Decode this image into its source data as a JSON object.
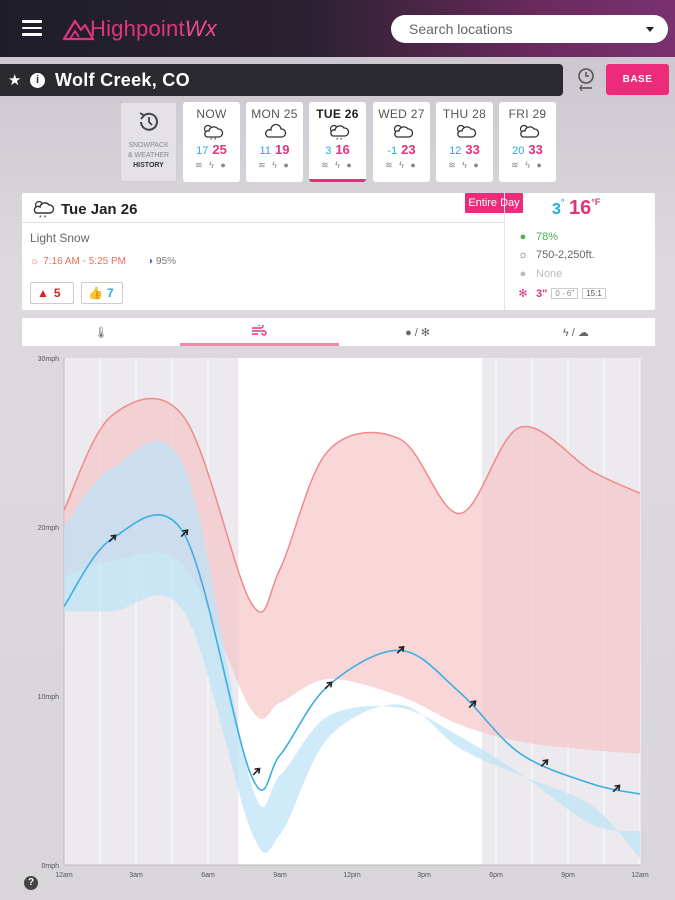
{
  "header": {
    "logo_text": "Highpoint",
    "logo_suffix": "Wx",
    "search_placeholder": "Search locations"
  },
  "location": {
    "name": "Wolf Creek, CO",
    "base_label": "BASE"
  },
  "history": {
    "line1": "SNOWPACK",
    "line2": "& WEATHER",
    "line3": "HISTORY"
  },
  "days": [
    {
      "name": "NOW",
      "lo": "17",
      "hi": "25",
      "icon": "cloud-sun-snow-icon"
    },
    {
      "name": "MON 25",
      "lo": "11",
      "hi": "19",
      "icon": "cloud-icon"
    },
    {
      "name": "TUE 26",
      "lo": "3",
      "hi": "16",
      "icon": "cloud-snow-icon"
    },
    {
      "name": "WED 27",
      "lo": "-1",
      "hi": "23",
      "icon": "cloud-sun-icon"
    },
    {
      "name": "THU 28",
      "lo": "12",
      "hi": "33",
      "icon": "cloud-sun-icon"
    },
    {
      "name": "FRI 29",
      "lo": "20",
      "hi": "33",
      "icon": "cloud-sun-icon"
    }
  ],
  "detail": {
    "date": "Tue Jan 26",
    "entire_day": "Entire Day",
    "condition": "Light Snow",
    "sun_times": "7:16 AM - 5:25 PM",
    "moon": "95%",
    "alerts": "5",
    "likes": "7",
    "temp_lo": "3",
    "temp_hi": "16",
    "temp_unit": "F",
    "precip_chance": "78%",
    "cloud_elev": "750-2,250ft.",
    "precip_type": "None",
    "snow_amount": "3\"",
    "snow_range": "0 - 6\"",
    "snow_ratio": "15:1"
  },
  "tabs": [
    "temperature",
    "wind",
    "precip-snow",
    "lightning-cloud"
  ],
  "chart_data": {
    "type": "area",
    "ylabel_ticks": [
      "0mph",
      "10mph",
      "20mph",
      "30mph"
    ],
    "ylim": [
      0,
      30
    ],
    "xlim": [
      0,
      24
    ],
    "x_tick_labels": [
      "12am",
      "3am",
      "6am",
      "9am",
      "12pm",
      "3pm",
      "6pm",
      "9pm",
      "12am"
    ],
    "daylight": [
      7.27,
      17.42
    ],
    "series": [
      {
        "x": [
          0,
          2,
          5,
          7.8,
          9,
          11,
          14,
          16.5,
          19,
          22,
          24
        ],
        "values": [
          21,
          26.6,
          26.5,
          15.5,
          17.5,
          24.5,
          25.2,
          20.8,
          25.9,
          23.3,
          22
        ],
        "role": "gust-upper"
      },
      {
        "x": [
          0,
          2,
          5,
          7.8,
          9,
          11,
          14,
          16.5,
          19,
          22,
          24
        ],
        "values": [
          17,
          18,
          17.7,
          9.2,
          9.6,
          11,
          10,
          8.3,
          7.3,
          6.8,
          6.6
        ],
        "role": "gust-lower"
      },
      {
        "x": [
          0,
          2,
          5,
          7.8,
          9,
          11,
          14,
          16.5,
          19,
          22,
          24
        ],
        "values": [
          20,
          23.5,
          23.6,
          4.8,
          5.3,
          8.8,
          9.3,
          7.6,
          5.4,
          2.4,
          2
        ],
        "role": "wind-upper"
      },
      {
        "x": [
          0,
          2,
          5,
          7.8,
          9,
          11,
          14,
          16.5,
          19,
          22,
          24
        ],
        "values": [
          15,
          15,
          15,
          2,
          1.8,
          7.5,
          9.5,
          6.9,
          5.3,
          3.5,
          0.4
        ],
        "role": "wind-lower"
      },
      {
        "x": [
          0,
          2,
          5,
          7.8,
          9,
          11,
          14,
          16.5,
          19,
          22,
          24
        ],
        "values": [
          15.3,
          19.3,
          19.6,
          5.3,
          6.5,
          10.6,
          12.7,
          10.2,
          6.6,
          4.8,
          4.2
        ],
        "role": "wind-speed"
      }
    ],
    "arrows_x": [
      2,
      5,
      8,
      11,
      14,
      17,
      20,
      23
    ]
  }
}
